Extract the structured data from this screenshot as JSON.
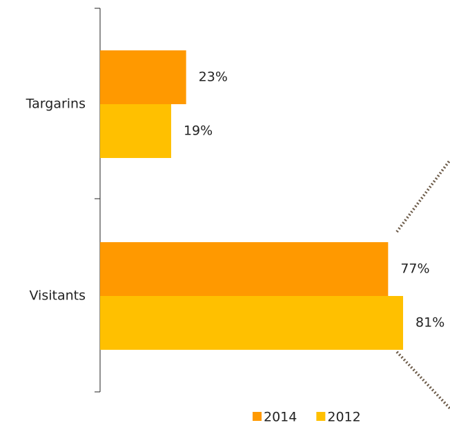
{
  "chart_data": {
    "type": "hbar",
    "categories": [
      "Targarins",
      "Visitants"
    ],
    "series": [
      {
        "name": "2014",
        "color": "#ff9900",
        "values": [
          23,
          77
        ],
        "value_labels": [
          "23%",
          "77%"
        ]
      },
      {
        "name": "2012",
        "color": "#ffc000",
        "values": [
          19,
          81
        ],
        "value_labels": [
          "19%",
          "81%"
        ]
      }
    ],
    "legend": "bottom"
  }
}
